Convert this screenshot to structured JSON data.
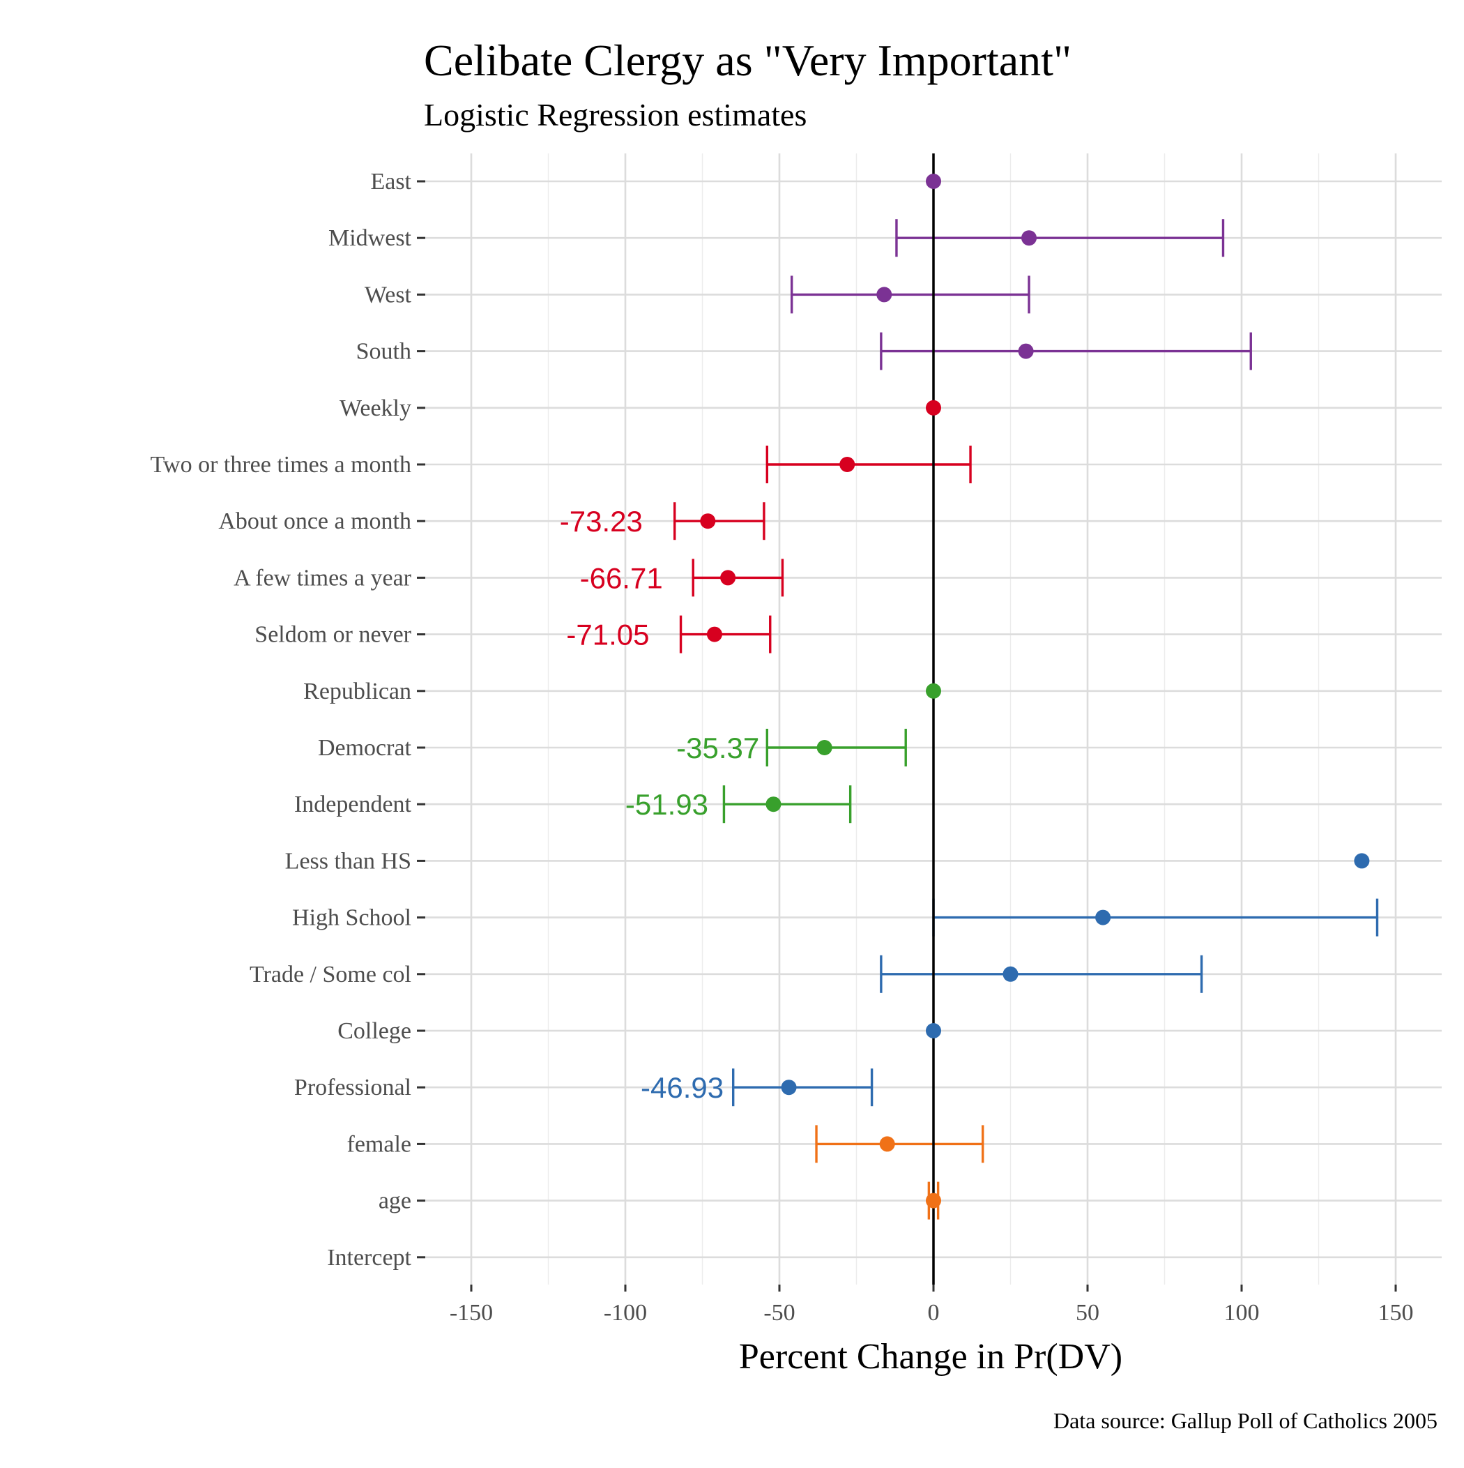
{
  "chart_data": {
    "type": "scatter",
    "subtype": "coefficient-plot-with-error-bars",
    "title": "Celibate Clergy as \"Very Important\"",
    "subtitle": "Logistic Regression estimates",
    "xlabel": "Percent Change in Pr(DV)",
    "ylabel": "",
    "caption": "Data source: Gallup Poll of Catholics 2005",
    "xlim": [
      -165,
      165
    ],
    "x_ticks": [
      -150,
      -100,
      -50,
      0,
      50,
      100,
      150
    ],
    "x_tick_labels": [
      "-150",
      "-100",
      "-50",
      "0",
      "50",
      "100",
      "150"
    ],
    "reference_line_x": 0,
    "grid": true,
    "categories": [
      "East",
      "Midwest",
      "West",
      "South",
      "Weekly",
      "Two or three times a month",
      "About once a month",
      "A few times a year",
      "Seldom or never",
      "Republican",
      "Democrat",
      "Independent",
      "Less than HS",
      "High School",
      "Trade / Some col",
      "College",
      "Professional",
      "female",
      "age",
      "Intercept"
    ],
    "groups": [
      {
        "color": "#7B3294",
        "items": [
          {
            "label": "East",
            "estimate": 0,
            "lower": null,
            "upper": null
          },
          {
            "label": "Midwest",
            "estimate": 31,
            "lower": -12,
            "upper": 94
          },
          {
            "label": "West",
            "estimate": -16,
            "lower": -46,
            "upper": 31
          },
          {
            "label": "South",
            "estimate": 30,
            "lower": -17,
            "upper": 103
          }
        ]
      },
      {
        "color": "#D7001F",
        "items": [
          {
            "label": "Weekly",
            "estimate": 0,
            "lower": null,
            "upper": null
          },
          {
            "label": "Two or three times a month",
            "estimate": -28,
            "lower": -54,
            "upper": 12
          },
          {
            "label": "About once a month",
            "estimate": -73.23,
            "lower": -84,
            "upper": -55,
            "value_label": "-73.23"
          },
          {
            "label": "A few times a year",
            "estimate": -66.71,
            "lower": -78,
            "upper": -49,
            "value_label": "-66.71"
          },
          {
            "label": "Seldom or never",
            "estimate": -71.05,
            "lower": -82,
            "upper": -53,
            "value_label": "-71.05"
          }
        ]
      },
      {
        "color": "#38A02C",
        "items": [
          {
            "label": "Republican",
            "estimate": 0,
            "lower": null,
            "upper": null
          },
          {
            "label": "Democrat",
            "estimate": -35.37,
            "lower": -54,
            "upper": -9,
            "value_label": "-35.37"
          },
          {
            "label": "Independent",
            "estimate": -51.93,
            "lower": -68,
            "upper": -27,
            "value_label": "-51.93"
          }
        ]
      },
      {
        "color": "#2E6BAF",
        "items": [
          {
            "label": "Less than HS",
            "estimate": 139,
            "lower": null,
            "upper": null
          },
          {
            "label": "High School",
            "estimate": 55,
            "lower": 0,
            "upper": 144
          },
          {
            "label": "Trade / Some col",
            "estimate": 25,
            "lower": -17,
            "upper": 87
          },
          {
            "label": "College",
            "estimate": 0,
            "lower": null,
            "upper": null
          },
          {
            "label": "Professional",
            "estimate": -46.93,
            "lower": -65,
            "upper": -20,
            "value_label": "-46.93"
          }
        ]
      },
      {
        "color": "#F07117",
        "items": [
          {
            "label": "female",
            "estimate": -15,
            "lower": -38,
            "upper": 16
          },
          {
            "label": "age",
            "estimate": 0,
            "lower": -1.5,
            "upper": 1.5
          }
        ]
      },
      {
        "color": "#000000",
        "items": [
          {
            "label": "Intercept",
            "estimate": null,
            "lower": null,
            "upper": null
          }
        ]
      }
    ]
  }
}
